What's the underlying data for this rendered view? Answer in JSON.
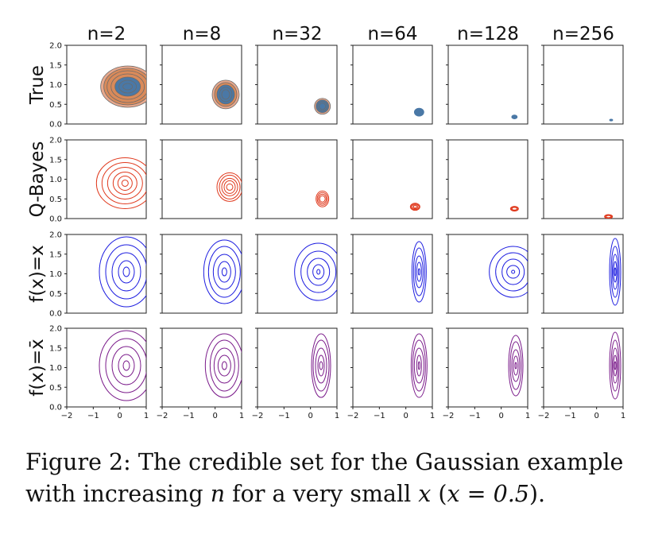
{
  "figure": {
    "column_titles": [
      "n=2",
      "n=8",
      "n=32",
      "n=64",
      "n=128",
      "n=256"
    ],
    "row_labels": [
      "True",
      "Q-Bayes",
      "f(x)=x",
      "f(x)=x̄"
    ],
    "y_ticks": [
      "0.0",
      "0.5",
      "1.0",
      "1.5",
      "2.0"
    ],
    "x_ticks": [
      "−2",
      "−1",
      "0",
      "1"
    ],
    "colors": {
      "true_fill_outer": "#e8a88c",
      "true_fill_mid": "#d98a5a",
      "true_line": "#c87a3a",
      "true_core": "#4a78a6",
      "qbayes": "#e03a1e",
      "fx": "#1c1ce0",
      "fxbar": "#7a1a8a"
    }
  },
  "chart_data": {
    "type": "contour-grid",
    "x_range": [
      -2,
      1
    ],
    "y_range": [
      0,
      2
    ],
    "columns_n": [
      2,
      8,
      32,
      64,
      128,
      256
    ],
    "rows": [
      "True",
      "Q-Bayes",
      "f(x)=x",
      "f(x)=x̄"
    ],
    "centers": {
      "True": [
        [
          0.3,
          0.95
        ],
        [
          0.4,
          0.75
        ],
        [
          0.45,
          0.45
        ],
        [
          0.5,
          0.3
        ],
        [
          0.5,
          0.18
        ],
        [
          0.55,
          0.1
        ]
      ],
      "Q-Bayes": [
        [
          0.2,
          0.9
        ],
        [
          0.55,
          0.8
        ],
        [
          0.45,
          0.5
        ],
        [
          0.35,
          0.3
        ],
        [
          0.5,
          0.25
        ],
        [
          0.45,
          0.05
        ]
      ],
      "f(x)=x": [
        [
          0.25,
          1.05
        ],
        [
          0.35,
          1.05
        ],
        [
          0.3,
          1.05
        ],
        [
          0.5,
          1.05
        ],
        [
          0.45,
          1.05
        ],
        [
          0.7,
          1.05
        ]
      ],
      "f(x)=x̄": [
        [
          0.25,
          1.05
        ],
        [
          0.35,
          1.05
        ],
        [
          0.4,
          1.05
        ],
        [
          0.5,
          1.05
        ],
        [
          0.55,
          1.05
        ],
        [
          0.7,
          1.05
        ]
      ]
    }
  },
  "caption": {
    "label": "Figure 2:",
    "text_1": "The credible set for the Gaussian example with increasing ",
    "var_n": "n",
    "text_2": " for a very small ",
    "var_x": "x",
    "text_3": " (",
    "eq": "x = 0.5",
    "text_4": ")."
  }
}
